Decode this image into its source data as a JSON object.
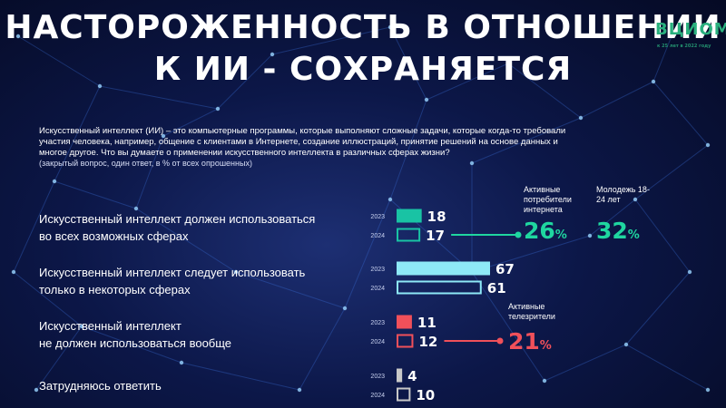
{
  "title": {
    "line1": "НАСТОРОЖЕННОСТЬ В ОТНОШЕНИИ",
    "line2": "К ИИ - СОХРАНЯЕТСЯ"
  },
  "logo": {
    "mark": "ВЦИОМ",
    "sub": "к 25 лет в 2022 году"
  },
  "intro": "Искусственный интеллект (ИИ) – это компьютерные программы, которые выполняют сложные задачи, которые когда-то требовали участия человека, например, общение с клиентами в Интернете, создание иллюстраций, принятие решений на основе данных и многое другое. Что вы думаете о применении искусственного интеллекта в различных сферах жизни?",
  "note": "(закрытый вопрос, один ответ, в % от всех опрошенных)",
  "questions": [
    {
      "line1": "Искусственный интеллект должен использоваться",
      "line2": "во всех возможных сферах"
    },
    {
      "line1": "Искусственный интеллект следует использовать",
      "line2": "только в некоторых сферах"
    },
    {
      "line1": "Искусственный интеллект",
      "line2": "не должен использоваться вообще"
    },
    {
      "line1": "Затрудняюсь ответить",
      "line2": ""
    }
  ],
  "callouts": {
    "internet": {
      "label": "Активные потребители интернета",
      "value": "26",
      "unit": "%"
    },
    "youth": {
      "label": "Молодежь 18-24 лет",
      "value": "32",
      "unit": "%"
    },
    "tv": {
      "label": "Активные телезрители",
      "value": "21",
      "unit": "%"
    }
  },
  "colors": {
    "all_spheres": "#19c3a4",
    "some_spheres": "#8ee9f7",
    "not_at_all": "#f0505a",
    "unsure": "#c8c8c8",
    "callout_green": "#1fd6a0",
    "callout_red": "#f0505a"
  },
  "chart_data": {
    "type": "bar",
    "orientation": "horizontal",
    "series_labels": [
      "2023",
      "2024"
    ],
    "categories": [
      "Искусственный интеллект должен использоваться во всех возможных сферах",
      "Искусственный интеллект следует использовать только в некоторых сферах",
      "Искусственный интеллект не должен использоваться вообще",
      "Затрудняюсь ответить"
    ],
    "series": [
      {
        "name": "2023",
        "values": [
          18,
          67,
          11,
          4
        ]
      },
      {
        "name": "2024",
        "values": [
          17,
          61,
          12,
          10
        ]
      }
    ],
    "unit": "%",
    "xlim": [
      0,
      67
    ],
    "style_note": "2023 bars filled, 2024 bars outlined"
  }
}
